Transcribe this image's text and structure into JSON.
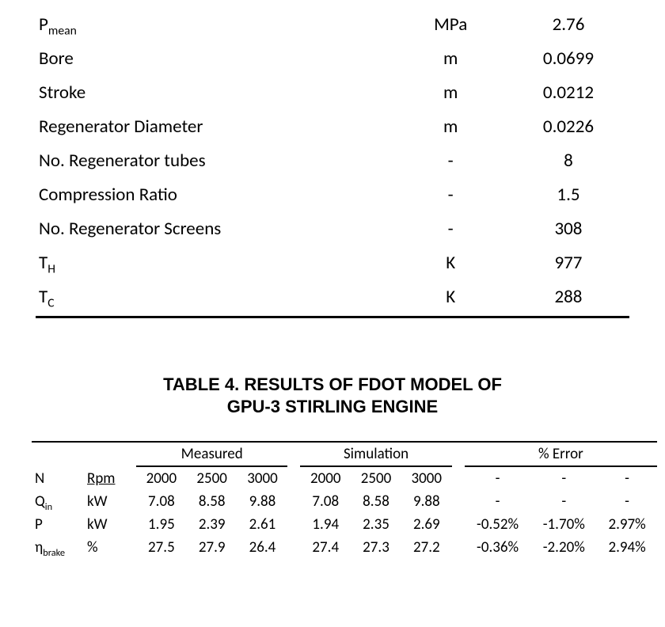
{
  "params": {
    "rows": [
      {
        "name_html": "P<span class='sub'>mean</span>",
        "unit": "MPa",
        "value": "2.76"
      },
      {
        "name_html": "Bore",
        "unit": "m",
        "value": "0.0699"
      },
      {
        "name_html": "Stroke",
        "unit": "m",
        "value": "0.0212"
      },
      {
        "name_html": "Regenerator Diameter",
        "unit": "m",
        "value": "0.0226"
      },
      {
        "name_html": "No. Regenerator tubes",
        "unit": "-",
        "value": "8"
      },
      {
        "name_html": "Compression Ratio",
        "unit": "-",
        "value": "1.5"
      },
      {
        "name_html": "No. Regenerator Screens",
        "unit": "-",
        "value": "308"
      },
      {
        "name_html": "T<span class='sub'>H</span>",
        "unit": "K",
        "value": "977"
      },
      {
        "name_html": "T<span class='sub'>C</span>",
        "unit": "K",
        "value": "288"
      }
    ]
  },
  "caption": {
    "line1": "TABLE 4. RESULTS OF FDOT MODEL OF",
    "line2": "GPU-3 STIRLING ENGINE"
  },
  "results": {
    "group_headers": [
      "Measured",
      "Simulation",
      "% Error"
    ],
    "unit_header_label": "Rpm",
    "rows": [
      {
        "label_html": "N",
        "unit": "Rpm",
        "unit_underline": true,
        "measured": [
          "2000",
          "2500",
          "3000"
        ],
        "simulation": [
          "2000",
          "2500",
          "3000"
        ],
        "error": [
          "-",
          "-",
          "-"
        ]
      },
      {
        "label_html": "Q<span class='sub2'>in</span>",
        "unit": "kW",
        "measured": [
          "7.08",
          "8.58",
          "9.88"
        ],
        "simulation": [
          "7.08",
          "8.58",
          "9.88"
        ],
        "error": [
          "-",
          "-",
          "-"
        ]
      },
      {
        "label_html": "P",
        "unit": "kW",
        "measured": [
          "1.95",
          "2.39",
          "2.61"
        ],
        "simulation": [
          "1.94",
          "2.35",
          "2.69"
        ],
        "error": [
          "-0.52%",
          "-1.70%",
          "2.97%"
        ]
      },
      {
        "label_html": "η<span class='sub2'>brake</span>",
        "unit": "%",
        "measured": [
          "27.5",
          "27.9",
          "26.4"
        ],
        "simulation": [
          "27.4",
          "27.3",
          "27.2"
        ],
        "error": [
          "-0.36%",
          "-2.20%",
          "2.94%"
        ]
      }
    ]
  }
}
